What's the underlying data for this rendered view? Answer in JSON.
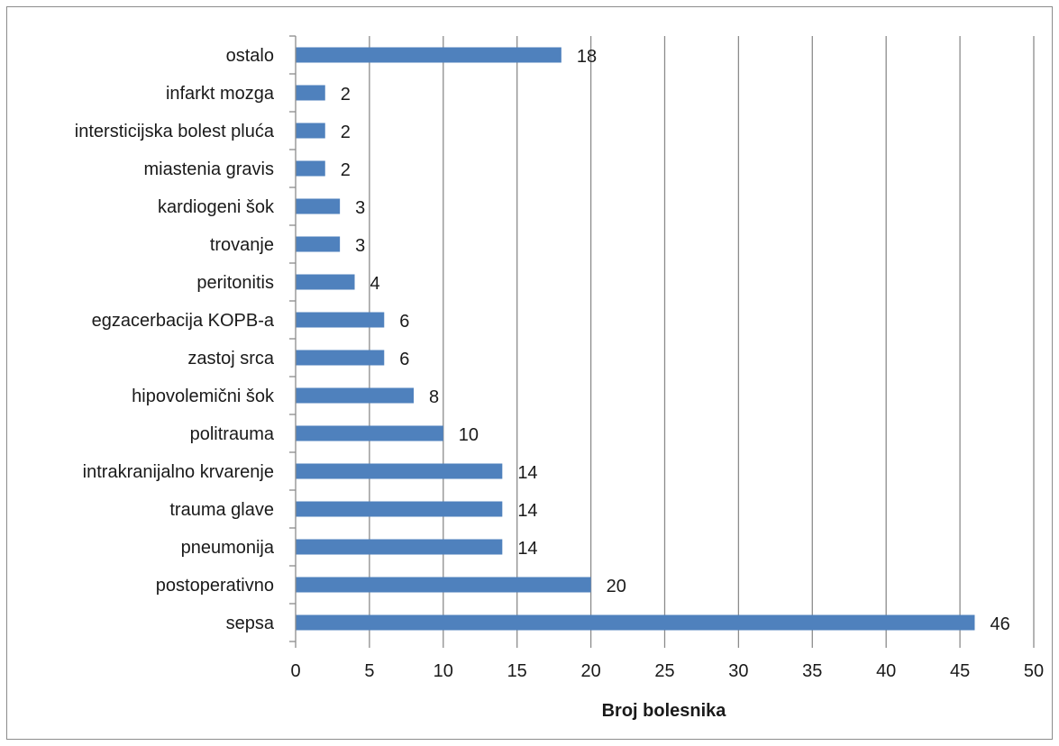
{
  "chart_data": {
    "type": "bar",
    "orientation": "horizontal",
    "categories": [
      "sepsa",
      "postoperativno",
      "pneumonija",
      "trauma glave",
      "intrakranijalno krvarenje",
      "politrauma",
      "hipovolemični šok",
      "zastoj srca",
      "egzacerbacija KOPB-a",
      "peritonitis",
      "trovanje",
      "kardiogeni šok",
      "miastenia gravis",
      "intersticijska bolest pluća",
      "infarkt mozga",
      "ostalo"
    ],
    "values": [
      46,
      20,
      14,
      14,
      14,
      10,
      8,
      6,
      6,
      4,
      3,
      3,
      2,
      2,
      2,
      18
    ],
    "xlabel": "Broj bolesnika",
    "ylabel": "",
    "xlim": [
      0,
      50
    ],
    "xticks": [
      0,
      5,
      10,
      15,
      20,
      25,
      30,
      35,
      40,
      45,
      50
    ],
    "grid": "vertical",
    "data_labels": true,
    "bar_color": "#4f81bd",
    "grid_color": "#8c8c8c"
  }
}
